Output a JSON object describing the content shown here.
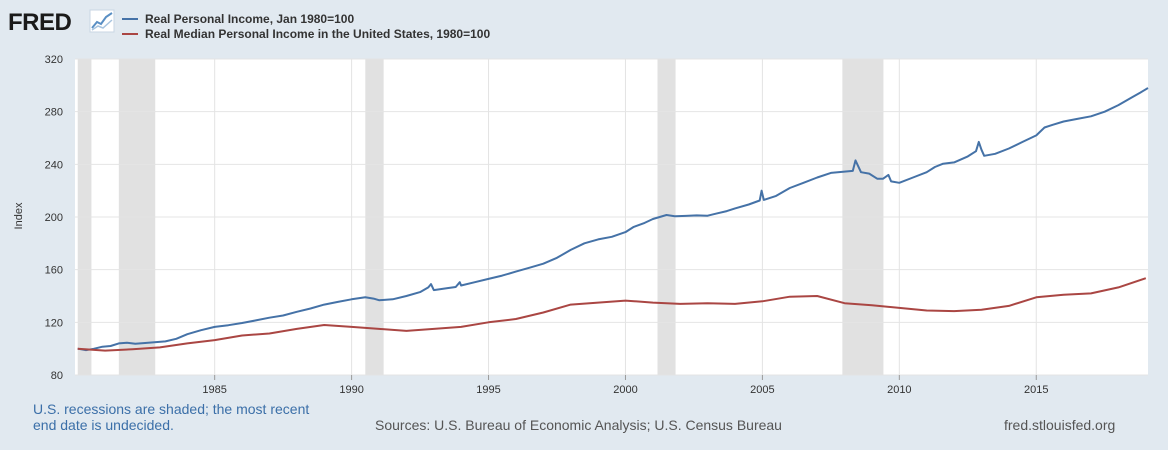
{
  "header": {
    "logo_text": "FRED"
  },
  "chart_data": {
    "type": "line",
    "title": "",
    "xlabel": "",
    "ylabel": "Index",
    "xlim": [
      1979.9,
      2019.08
    ],
    "ylim": [
      80,
      320
    ],
    "yticks": [
      "80",
      "120",
      "160",
      "200",
      "240",
      "280",
      "320"
    ],
    "xticks": [
      "1985",
      "1990",
      "1995",
      "2000",
      "2005",
      "2010",
      "2015"
    ],
    "grid": true,
    "legend_position": "top-left",
    "recessions": [
      [
        1980.0,
        1980.5
      ],
      [
        1981.5,
        1982.83
      ],
      [
        1990.5,
        1991.17
      ],
      [
        2001.17,
        2001.83
      ],
      [
        2007.92,
        2009.42
      ]
    ],
    "series": [
      {
        "name": "Real Personal Income, Jan 1980=100",
        "color": "#4572a7",
        "points": [
          [
            1980.0,
            100
          ],
          [
            1980.3,
            98.8
          ],
          [
            1980.6,
            100
          ],
          [
            1980.9,
            101.5
          ],
          [
            1981.2,
            102
          ],
          [
            1981.5,
            104
          ],
          [
            1981.8,
            104.5
          ],
          [
            1982.1,
            103.8
          ],
          [
            1982.4,
            104.2
          ],
          [
            1982.8,
            104.8
          ],
          [
            1983.2,
            105.5
          ],
          [
            1983.6,
            107.5
          ],
          [
            1984.0,
            111
          ],
          [
            1984.5,
            114
          ],
          [
            1985.0,
            116.5
          ],
          [
            1985.5,
            117.8
          ],
          [
            1986.0,
            119.5
          ],
          [
            1986.5,
            121.5
          ],
          [
            1987.0,
            123.5
          ],
          [
            1987.5,
            125.2
          ],
          [
            1988.0,
            128
          ],
          [
            1988.5,
            130.5
          ],
          [
            1989.0,
            133.5
          ],
          [
            1989.5,
            135.5
          ],
          [
            1990.0,
            137.5
          ],
          [
            1990.5,
            139
          ],
          [
            1990.8,
            138
          ],
          [
            1991.0,
            136.8
          ],
          [
            1991.5,
            137.5
          ],
          [
            1992.0,
            140
          ],
          [
            1992.5,
            143
          ],
          [
            1992.8,
            146.5
          ],
          [
            1992.9,
            149
          ],
          [
            1993.0,
            144.5
          ],
          [
            1993.5,
            146
          ],
          [
            1993.8,
            146.8
          ],
          [
            1993.95,
            150.5
          ],
          [
            1994.0,
            148
          ],
          [
            1994.5,
            150.5
          ],
          [
            1995.0,
            153
          ],
          [
            1995.5,
            155.5
          ],
          [
            1996.0,
            158.5
          ],
          [
            1996.5,
            161.5
          ],
          [
            1997.0,
            164.5
          ],
          [
            1997.5,
            169
          ],
          [
            1998.0,
            175
          ],
          [
            1998.5,
            180
          ],
          [
            1999.0,
            183
          ],
          [
            1999.5,
            185
          ],
          [
            2000.0,
            188.5
          ],
          [
            2000.3,
            192.5
          ],
          [
            2000.7,
            195.5
          ],
          [
            2001.0,
            198.5
          ],
          [
            2001.5,
            201.5
          ],
          [
            2001.8,
            200.5
          ],
          [
            2002.2,
            200.8
          ],
          [
            2002.6,
            201.2
          ],
          [
            2003.0,
            201
          ],
          [
            2003.3,
            202.5
          ],
          [
            2003.7,
            204.5
          ],
          [
            2004.0,
            206.5
          ],
          [
            2004.5,
            209.5
          ],
          [
            2004.9,
            212.5
          ],
          [
            2004.97,
            220
          ],
          [
            2005.05,
            213
          ],
          [
            2005.5,
            216
          ],
          [
            2006.0,
            222
          ],
          [
            2006.5,
            226
          ],
          [
            2007.0,
            230
          ],
          [
            2007.5,
            233.5
          ],
          [
            2008.0,
            234.5
          ],
          [
            2008.3,
            235
          ],
          [
            2008.4,
            243
          ],
          [
            2008.6,
            234
          ],
          [
            2008.9,
            233
          ],
          [
            2009.2,
            229
          ],
          [
            2009.4,
            229
          ],
          [
            2009.6,
            232
          ],
          [
            2009.7,
            227
          ],
          [
            2010.0,
            226
          ],
          [
            2010.5,
            230
          ],
          [
            2011.0,
            234
          ],
          [
            2011.3,
            238
          ],
          [
            2011.6,
            240.5
          ],
          [
            2012.0,
            241.5
          ],
          [
            2012.5,
            246
          ],
          [
            2012.8,
            250
          ],
          [
            2012.9,
            257
          ],
          [
            2013.0,
            251
          ],
          [
            2013.1,
            246.5
          ],
          [
            2013.5,
            248
          ],
          [
            2014.0,
            252
          ],
          [
            2014.5,
            257
          ],
          [
            2015.0,
            262
          ],
          [
            2015.3,
            268
          ],
          [
            2015.6,
            270
          ],
          [
            2016.0,
            272.5
          ],
          [
            2016.5,
            274.5
          ],
          [
            2017.0,
            276.5
          ],
          [
            2017.5,
            280
          ],
          [
            2018.0,
            285
          ],
          [
            2018.5,
            291
          ],
          [
            2018.8,
            294.5
          ],
          [
            2019.08,
            298
          ]
        ]
      },
      {
        "name": "Real Median Personal Income in the United States, 1980=100",
        "color": "#aa4643",
        "points": [
          [
            1980.0,
            100
          ],
          [
            1981.0,
            98.5
          ],
          [
            1982.0,
            99.5
          ],
          [
            1983.0,
            101
          ],
          [
            1984.0,
            104
          ],
          [
            1985.0,
            106.5
          ],
          [
            1986.0,
            110
          ],
          [
            1987.0,
            111.5
          ],
          [
            1988.0,
            115
          ],
          [
            1989.0,
            118
          ],
          [
            1990.0,
            116.5
          ],
          [
            1991.0,
            115
          ],
          [
            1992.0,
            113.5
          ],
          [
            1993.0,
            115
          ],
          [
            1994.0,
            116.5
          ],
          [
            1995.0,
            120
          ],
          [
            1996.0,
            122.5
          ],
          [
            1997.0,
            127.5
          ],
          [
            1998.0,
            133.5
          ],
          [
            1999.0,
            135
          ],
          [
            2000.0,
            136.5
          ],
          [
            2001.0,
            135
          ],
          [
            2002.0,
            134
          ],
          [
            2003.0,
            134.5
          ],
          [
            2004.0,
            134
          ],
          [
            2005.0,
            136
          ],
          [
            2006.0,
            139.5
          ],
          [
            2007.0,
            140
          ],
          [
            2008.0,
            134.5
          ],
          [
            2009.0,
            133
          ],
          [
            2010.0,
            131
          ],
          [
            2011.0,
            129
          ],
          [
            2012.0,
            128.5
          ],
          [
            2013.0,
            129.5
          ],
          [
            2014.0,
            132.5
          ],
          [
            2015.0,
            139
          ],
          [
            2016.0,
            141
          ],
          [
            2017.0,
            142
          ],
          [
            2018.0,
            146.5
          ],
          [
            2019.0,
            153.5
          ]
        ]
      }
    ]
  },
  "footer": {
    "note": "U.S. recessions are shaded; the most recent end date is undecided.",
    "sources": "Sources: U.S. Bureau of Economic Analysis; U.S. Census Bureau",
    "site": "fred.stlouisfed.org"
  }
}
